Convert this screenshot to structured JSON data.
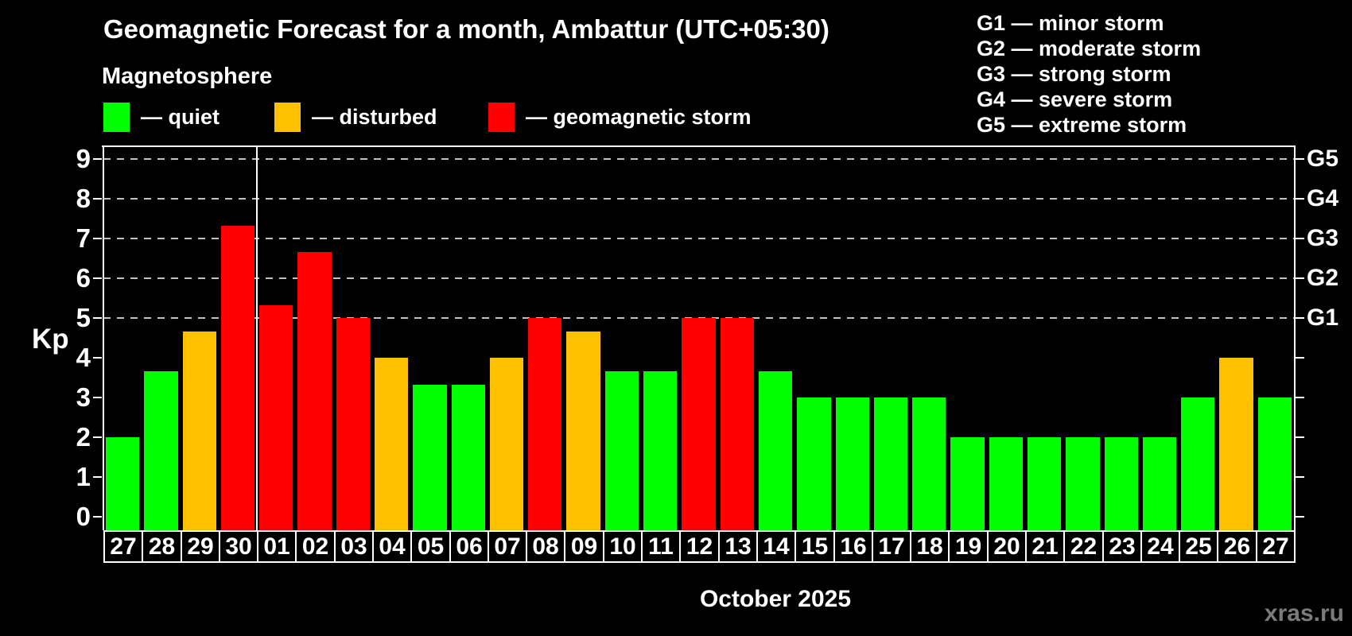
{
  "header": {
    "title": "Geomagnetic Forecast for a month, Ambattur (UTC+05:30)",
    "subtitle": "Magnetosphere",
    "legend": [
      {
        "status": "quiet",
        "label": "— quiet",
        "color": "#00ff00"
      },
      {
        "status": "disturbed",
        "label": "— disturbed",
        "color": "#ffc000"
      },
      {
        "status": "storm",
        "label": "— geomagnetic storm",
        "color": "#ff0000"
      }
    ],
    "storm_scale": [
      {
        "label": "G1 — minor storm"
      },
      {
        "label": "G2 — moderate storm"
      },
      {
        "label": "G3 — strong storm"
      },
      {
        "label": "G4 — severe storm"
      },
      {
        "label": "G5 — extreme storm"
      }
    ]
  },
  "chart_data": {
    "type": "bar",
    "title": "Geomagnetic Forecast for a month, Ambattur (UTC+05:30)",
    "subtitle": "Magnetosphere",
    "ylabel": "Kp",
    "xlabel": "October 2025",
    "ylim": [
      0,
      9.4
    ],
    "yticks": [
      0,
      1,
      2,
      3,
      4,
      5,
      6,
      7,
      8,
      9
    ],
    "gridlines_kp": [
      5,
      6,
      7,
      8,
      9
    ],
    "grid": "dashed horizontal at storm levels only",
    "right_scale": [
      {
        "kp": 5,
        "label": "G1"
      },
      {
        "kp": 6,
        "label": "G2"
      },
      {
        "kp": 7,
        "label": "G3"
      },
      {
        "kp": 8,
        "label": "G4"
      },
      {
        "kp": 9,
        "label": "G5"
      }
    ],
    "month_separator_after_index": 3,
    "status_colors": {
      "quiet": "#00ff00",
      "disturbed": "#ffc000",
      "storm": "#ff0000"
    },
    "categories": [
      "27",
      "28",
      "29",
      "30",
      "01",
      "02",
      "03",
      "04",
      "05",
      "06",
      "07",
      "08",
      "09",
      "10",
      "11",
      "12",
      "13",
      "14",
      "15",
      "16",
      "17",
      "18",
      "19",
      "20",
      "21",
      "22",
      "23",
      "24",
      "25",
      "26",
      "27"
    ],
    "values": [
      2.0,
      3.67,
      4.67,
      7.33,
      5.33,
      6.67,
      5.0,
      4.0,
      3.33,
      3.33,
      4.0,
      5.0,
      4.67,
      3.67,
      3.67,
      5.0,
      5.0,
      3.67,
      3.0,
      3.0,
      3.0,
      3.0,
      2.0,
      2.0,
      2.0,
      2.0,
      2.0,
      2.0,
      3.0,
      4.0,
      3.0
    ],
    "statuses": [
      "quiet",
      "quiet",
      "disturbed",
      "storm",
      "storm",
      "storm",
      "storm",
      "disturbed",
      "quiet",
      "quiet",
      "disturbed",
      "storm",
      "disturbed",
      "quiet",
      "quiet",
      "storm",
      "storm",
      "quiet",
      "quiet",
      "quiet",
      "quiet",
      "quiet",
      "quiet",
      "quiet",
      "quiet",
      "quiet",
      "quiet",
      "quiet",
      "quiet",
      "disturbed",
      "quiet"
    ]
  },
  "footer": {
    "caption": "October 2025",
    "watermark": "xras.ru"
  }
}
